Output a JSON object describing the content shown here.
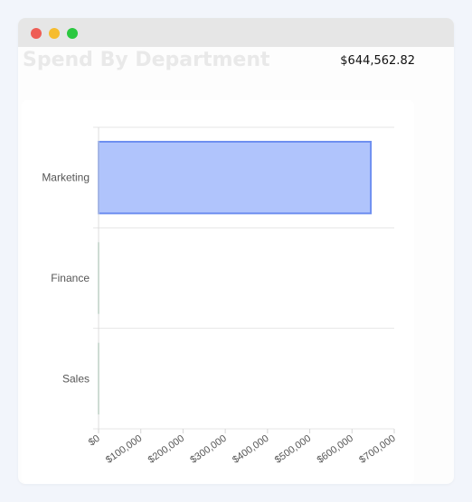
{
  "window": {
    "controls": {
      "close_color": "#ee5e56",
      "minimize_color": "#f6bc2f",
      "maximize_color": "#2bc840"
    }
  },
  "header": {
    "title": "Spend By Department",
    "total": "$644,562.82"
  },
  "chart_data": {
    "type": "bar",
    "orientation": "horizontal",
    "title": "",
    "xlabel": "",
    "ylabel": "",
    "categories": [
      "Marketing",
      "Finance",
      "Sales"
    ],
    "series": [
      {
        "values": [
          644562.82,
          0,
          0
        ]
      }
    ],
    "xlim": [
      0,
      700000
    ],
    "x_ticks": [
      0,
      100000,
      200000,
      300000,
      400000,
      500000,
      600000,
      700000
    ],
    "x_tick_labels": [
      "$0",
      "$100,000",
      "$200,000",
      "$300,000",
      "$400,000",
      "$500,000",
      "$600,000",
      "$700,000"
    ],
    "grid": true,
    "legend": "none",
    "colors": {
      "bar_fill": "#b0c4fc",
      "bar_stroke": "#6e8ff0",
      "zero_bar_stroke": "#7fb89a",
      "grid": "#e6e6e6"
    }
  }
}
